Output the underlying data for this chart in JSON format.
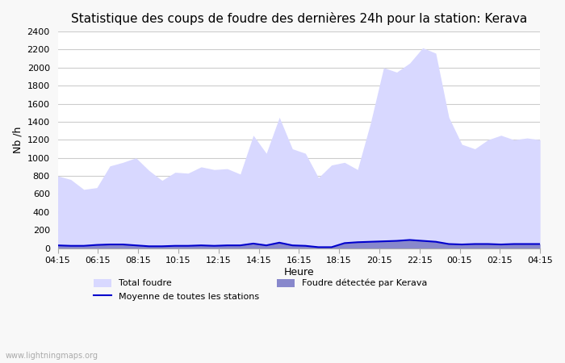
{
  "title": "Statistique des coups de foudre des dernières 24h pour la station: Kerava",
  "xlabel": "Heure",
  "ylabel": "Nb /h",
  "ylim": [
    0,
    2400
  ],
  "yticks": [
    0,
    200,
    400,
    600,
    800,
    1000,
    1200,
    1400,
    1600,
    1800,
    2000,
    2200,
    2400
  ],
  "x_labels": [
    "04:15",
    "06:15",
    "08:15",
    "10:15",
    "12:15",
    "14:15",
    "16:15",
    "18:15",
    "20:15",
    "22:15",
    "00:15",
    "02:15",
    "04:15"
  ],
  "watermark": "www.lightningmaps.org",
  "legend": [
    {
      "label": "Total foudre",
      "color": "#ccccff",
      "type": "fill"
    },
    {
      "label": "Moyenne de toutes les stations",
      "color": "#0000cc",
      "type": "line"
    },
    {
      "label": "Foudre détectée par Kerava",
      "color": "#8888cc",
      "type": "fill"
    }
  ],
  "total_foudre": [
    800,
    760,
    650,
    670,
    910,
    950,
    1000,
    860,
    750,
    840,
    830,
    900,
    870,
    880,
    820,
    1250,
    1050,
    1450,
    1100,
    1050,
    780,
    920,
    950,
    870,
    1390,
    2000,
    1950,
    2050,
    2220,
    2160,
    1450,
    1150,
    1100,
    1200,
    1250,
    1200,
    1220,
    1200
  ],
  "foudre_kerava": [
    30,
    25,
    25,
    35,
    40,
    40,
    30,
    20,
    20,
    25,
    25,
    30,
    25,
    30,
    30,
    50,
    30,
    60,
    30,
    25,
    10,
    10,
    55,
    65,
    70,
    75,
    80,
    90,
    80,
    70,
    45,
    40,
    45,
    45,
    40,
    45,
    45,
    45
  ],
  "moyenne": [
    30,
    25,
    25,
    35,
    40,
    40,
    30,
    20,
    20,
    25,
    25,
    30,
    25,
    30,
    30,
    50,
    30,
    60,
    30,
    25,
    10,
    10,
    55,
    65,
    70,
    75,
    80,
    90,
    80,
    70,
    45,
    40,
    45,
    45,
    40,
    45,
    45,
    45
  ],
  "bg_color": "#f8f8f8",
  "plot_bg_color": "#ffffff",
  "grid_color": "#cccccc",
  "fill_total_color": "#d8d8ff",
  "fill_kerava_color": "#8888cc",
  "line_mean_color": "#0000cc"
}
